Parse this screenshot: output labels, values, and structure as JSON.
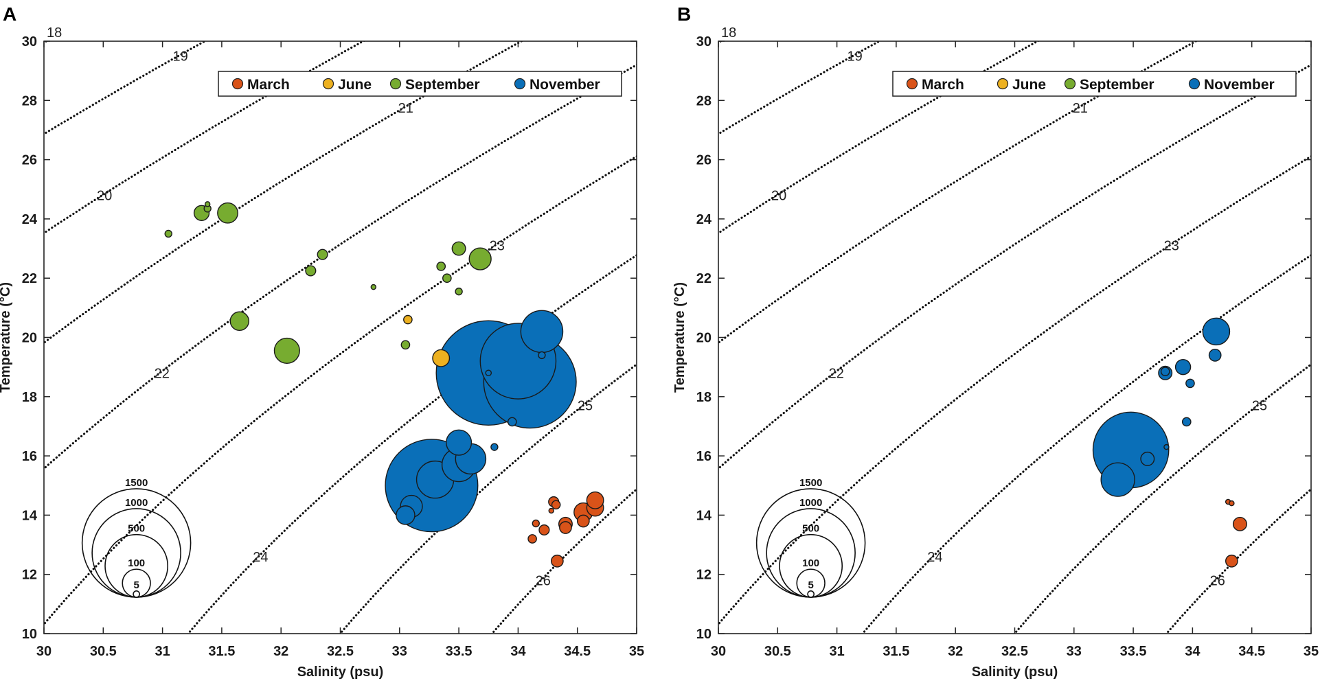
{
  "chart_data": [
    {
      "type": "scatter",
      "panel_label": "A",
      "xlabel": "Salinity (psu)",
      "ylabel": "Temperature (°C)",
      "xlim": [
        30,
        35
      ],
      "ylim": [
        10,
        30
      ],
      "xticks": [
        "30",
        "30.5",
        "31",
        "31.5",
        "32",
        "32.5",
        "33",
        "33.5",
        "34",
        "34.5",
        "35"
      ],
      "yticks": [
        "10",
        "12",
        "14",
        "16",
        "18",
        "20",
        "22",
        "24",
        "26",
        "28",
        "30"
      ],
      "isopycnals": [
        "18",
        "19",
        "20",
        "21",
        "22",
        "23",
        "24",
        "25",
        "26"
      ],
      "legend": {
        "placement": "top-right",
        "entries": [
          "March",
          "June",
          "September",
          "November"
        ]
      },
      "size_legend": [
        "1500",
        "1000",
        "500",
        "100",
        "5"
      ],
      "series": [
        {
          "name": "March",
          "color": "#D95319",
          "points": [
            [
              34.3,
              14.45,
              13
            ],
            [
              34.32,
              14.35,
              9
            ],
            [
              34.28,
              14.15,
              3
            ],
            [
              34.4,
              13.7,
              23
            ],
            [
              34.4,
              13.58,
              18
            ],
            [
              34.22,
              13.5,
              13
            ],
            [
              34.15,
              13.72,
              6
            ],
            [
              34.12,
              13.2,
              9
            ],
            [
              34.55,
              14.1,
              44
            ],
            [
              34.55,
              13.8,
              18
            ],
            [
              34.65,
              14.25,
              36
            ],
            [
              34.65,
              14.5,
              36
            ],
            [
              34.33,
              12.45,
              18
            ]
          ]
        },
        {
          "name": "June",
          "color": "#EDB120",
          "points": [
            [
              33.07,
              20.6,
              9
            ],
            [
              33.35,
              19.3,
              36
            ]
          ]
        },
        {
          "name": "September",
          "color": "#77AC30",
          "points": [
            [
              31.05,
              23.5,
              6
            ],
            [
              31.33,
              24.2,
              29
            ],
            [
              31.38,
              24.35,
              6
            ],
            [
              31.38,
              24.5,
              3
            ],
            [
              31.55,
              24.2,
              52
            ],
            [
              32.35,
              22.8,
              13
            ],
            [
              32.25,
              22.25,
              13
            ],
            [
              31.65,
              20.55,
              44
            ],
            [
              32.05,
              19.55,
              81
            ],
            [
              32.78,
              21.7,
              3
            ],
            [
              33.05,
              19.75,
              9
            ],
            [
              33.35,
              22.4,
              9
            ],
            [
              33.4,
              22.0,
              9
            ],
            [
              33.5,
              23.0,
              23
            ],
            [
              33.5,
              21.55,
              6
            ],
            [
              33.68,
              22.65,
              61
            ]
          ]
        },
        {
          "name": "November",
          "color": "#0A6FB8",
          "points": [
            [
              33.75,
              18.8,
              1390
            ],
            [
              34.1,
              18.5,
              1090
            ],
            [
              34.0,
              19.2,
              730
            ],
            [
              34.2,
              20.2,
              225
            ],
            [
              34.2,
              19.4,
              6
            ],
            [
              33.75,
              18.8,
              4
            ],
            [
              33.95,
              17.15,
              9
            ],
            [
              33.8,
              16.3,
              6
            ],
            [
              33.27,
              15.0,
              1090
            ],
            [
              33.3,
              15.2,
              175
            ],
            [
              33.5,
              15.7,
              144
            ],
            [
              33.5,
              16.45,
              81
            ],
            [
              33.6,
              15.9,
              117
            ],
            [
              33.1,
              14.3,
              61
            ],
            [
              33.05,
              14.0,
              44
            ]
          ]
        }
      ]
    },
    {
      "type": "scatter",
      "panel_label": "B",
      "xlabel": "Salinity (psu)",
      "ylabel": "Temperature (°C)",
      "xlim": [
        30,
        35
      ],
      "ylim": [
        10,
        30
      ],
      "xticks": [
        "30",
        "30.5",
        "31",
        "31.5",
        "32",
        "32.5",
        "33",
        "33.5",
        "34",
        "34.5",
        "35"
      ],
      "yticks": [
        "10",
        "12",
        "14",
        "16",
        "18",
        "20",
        "22",
        "24",
        "26",
        "28",
        "30"
      ],
      "isopycnals": [
        "18",
        "19",
        "20",
        "21",
        "22",
        "23",
        "24",
        "25",
        "26"
      ],
      "legend": {
        "placement": "top-right",
        "entries": [
          "March",
          "June",
          "September",
          "November"
        ]
      },
      "size_legend": [
        "1500",
        "1000",
        "500",
        "100",
        "5"
      ],
      "series": [
        {
          "name": "March",
          "color": "#D95319",
          "points": [
            [
              34.3,
              14.45,
              3
            ],
            [
              34.33,
              14.4,
              3
            ],
            [
              34.4,
              13.7,
              23
            ],
            [
              34.33,
              12.45,
              18
            ]
          ]
        },
        {
          "name": "June",
          "color": "#EDB120",
          "points": []
        },
        {
          "name": "September",
          "color": "#77AC30",
          "points": []
        },
        {
          "name": "November",
          "color": "#0A6FB8",
          "points": [
            [
              33.48,
              16.2,
              730
            ],
            [
              33.37,
              15.2,
              144
            ],
            [
              33.62,
              15.9,
              23
            ],
            [
              33.78,
              16.3,
              3
            ],
            [
              34.2,
              20.2,
              92
            ],
            [
              34.19,
              19.4,
              18
            ],
            [
              33.92,
              19.0,
              29
            ],
            [
              33.77,
              18.8,
              23
            ],
            [
              33.77,
              18.85,
              9
            ],
            [
              33.98,
              18.45,
              9
            ],
            [
              33.95,
              17.15,
              9
            ]
          ]
        }
      ]
    }
  ]
}
